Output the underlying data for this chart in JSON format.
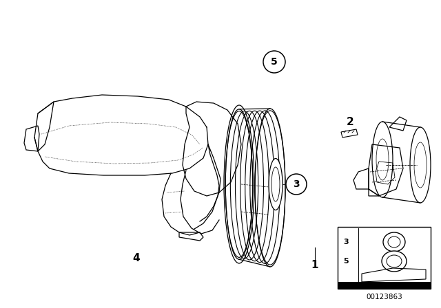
{
  "background_color": "#ffffff",
  "line_color": "#000000",
  "catalog_number": "00123863",
  "fig_width": 6.4,
  "fig_height": 4.48,
  "dpi": 100
}
